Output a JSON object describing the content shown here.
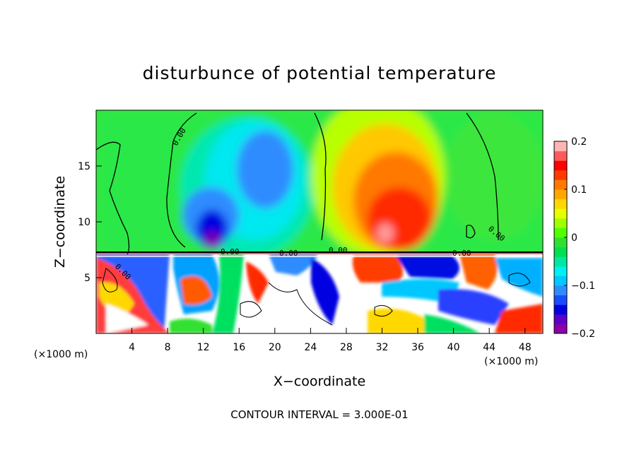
{
  "chart_data": {
    "type": "heatmap",
    "title": "disturbunce of potential temperature",
    "xlabel": "X−coordinate",
    "ylabel": "Z−coordinate",
    "x_unit": "(×1000 m)",
    "x_unit_right": "(×1000 m)",
    "xlim": [
      0,
      50
    ],
    "ylim": [
      0,
      20
    ],
    "x_ticks": [
      "4",
      "8",
      "12",
      "16",
      "20",
      "24",
      "28",
      "32",
      "36",
      "40",
      "44",
      "48"
    ],
    "y_ticks": [
      "5",
      "10",
      "15"
    ],
    "colorbar": {
      "min": -0.2,
      "max": 0.2,
      "tick_labels": [
        "0.2",
        "0.1",
        "0",
        "−0.1",
        "−0.2"
      ],
      "colors": [
        "#8a00a8",
        "#5a00c8",
        "#0000e0",
        "#1a4cff",
        "#2f8cff",
        "#00c8ff",
        "#00f0f0",
        "#00e8a0",
        "#00e050",
        "#30e030",
        "#50ff00",
        "#a0ff00",
        "#e8ff00",
        "#ffd800",
        "#ffa800",
        "#ff7800",
        "#ff3c00",
        "#ff0000",
        "#ff5a5a",
        "#ffb4b4"
      ]
    },
    "contour_labels": [
      "0.00",
      "0.00",
      "0.00",
      "0.00",
      "0.00",
      "0.00",
      "0.00"
    ],
    "footer": "CONTOUR INTERVAL = 3.000E-01",
    "grid": false
  }
}
